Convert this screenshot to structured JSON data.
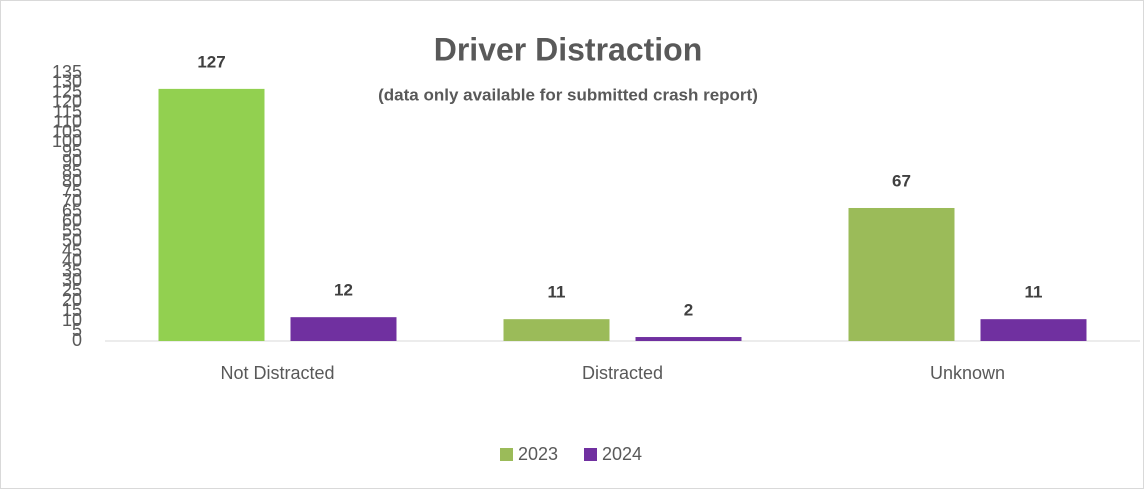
{
  "chart_data": {
    "type": "bar",
    "title": "Driver Distraction",
    "subtitle": "(data only available for submitted crash report)",
    "categories": [
      "Not Distracted",
      "Distracted",
      "Unknown"
    ],
    "series": [
      {
        "name": "2023",
        "color": "#9bbb59",
        "colors": [
          "#92d050",
          "#9bbb59",
          "#9bbb59"
        ],
        "values": [
          127,
          11,
          67
        ]
      },
      {
        "name": "2024",
        "color": "#7030a0",
        "values": [
          12,
          2,
          11
        ]
      }
    ],
    "ylim": [
      0,
      135
    ],
    "yticks": [
      0,
      5,
      10,
      15,
      20,
      25,
      30,
      35,
      40,
      45,
      50,
      55,
      60,
      65,
      70,
      75,
      80,
      85,
      90,
      95,
      100,
      105,
      110,
      115,
      120,
      125,
      130,
      135
    ],
    "grid": false,
    "legend": "bottom"
  }
}
